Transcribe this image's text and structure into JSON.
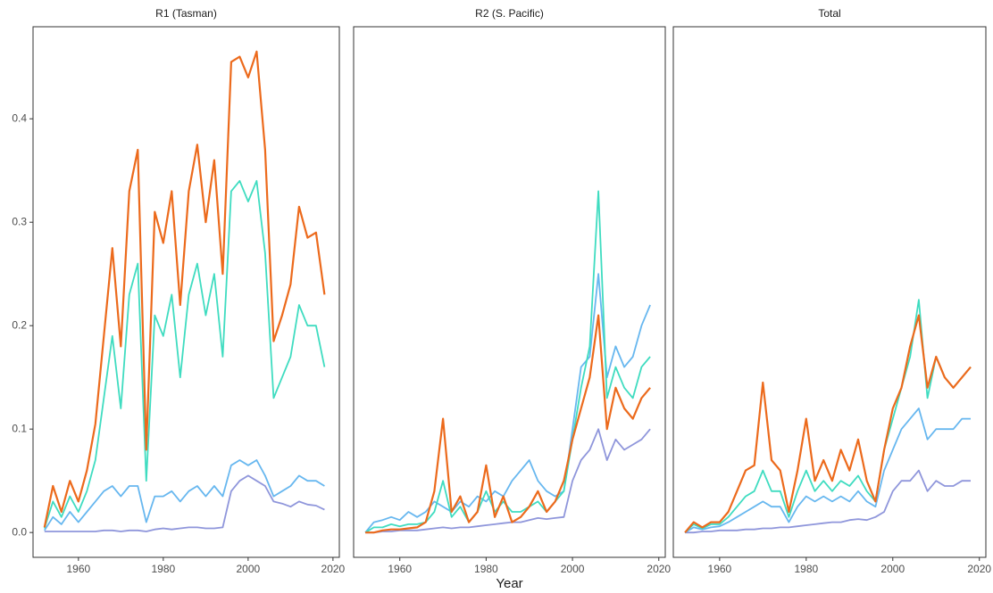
{
  "chart_data": [
    {
      "type": "line",
      "title": "R1 (Tasman)",
      "x": [
        1952,
        1954,
        1956,
        1958,
        1960,
        1962,
        1964,
        1966,
        1968,
        1970,
        1972,
        1974,
        1976,
        1978,
        1980,
        1982,
        1984,
        1986,
        1988,
        1990,
        1992,
        1994,
        1996,
        1998,
        2000,
        2002,
        2004,
        2006,
        2008,
        2010,
        2012,
        2014,
        2016,
        2018
      ],
      "xlim": [
        1949.3,
        2021.5
      ],
      "ylim": [
        -0.024,
        0.489
      ],
      "xticks": [
        1960,
        1980,
        2000,
        2020
      ],
      "yticks": [
        {
          "value": 0,
          "label": "0.0"
        },
        0.1,
        0.2,
        0.3,
        0.4
      ],
      "series": [
        {
          "color": "#8f96db",
          "values": [
            0.001,
            0.001,
            0.001,
            0.001,
            0.001,
            0.001,
            0.001,
            0.002,
            0.002,
            0.001,
            0.002,
            0.002,
            0.001,
            0.003,
            0.004,
            0.003,
            0.004,
            0.005,
            0.005,
            0.004,
            0.004,
            0.005,
            0.04,
            0.05,
            0.055,
            0.05,
            0.045,
            0.03,
            0.028,
            0.025,
            0.03,
            0.027,
            0.026,
            0.022
          ]
        },
        {
          "color": "#67b7ef",
          "values": [
            0.002,
            0.015,
            0.008,
            0.02,
            0.01,
            0.02,
            0.03,
            0.04,
            0.045,
            0.035,
            0.045,
            0.045,
            0.01,
            0.035,
            0.035,
            0.04,
            0.03,
            0.04,
            0.045,
            0.035,
            0.045,
            0.035,
            0.065,
            0.07,
            0.065,
            0.07,
            0.055,
            0.035,
            0.04,
            0.045,
            0.055,
            0.05,
            0.05,
            0.045
          ]
        },
        {
          "color": "#3fdcc0",
          "values": [
            0.004,
            0.03,
            0.015,
            0.035,
            0.02,
            0.04,
            0.07,
            0.13,
            0.19,
            0.12,
            0.23,
            0.26,
            0.05,
            0.21,
            0.19,
            0.23,
            0.15,
            0.23,
            0.26,
            0.21,
            0.25,
            0.17,
            0.33,
            0.34,
            0.32,
            0.34,
            0.27,
            0.13,
            0.15,
            0.17,
            0.22,
            0.2,
            0.2,
            0.16
          ]
        },
        {
          "color": "#ec6a1c",
          "values": [
            0.005,
            0.045,
            0.02,
            0.05,
            0.03,
            0.06,
            0.105,
            0.19,
            0.275,
            0.18,
            0.33,
            0.37,
            0.08,
            0.31,
            0.28,
            0.33,
            0.22,
            0.33,
            0.375,
            0.3,
            0.36,
            0.25,
            0.455,
            0.46,
            0.44,
            0.465,
            0.37,
            0.185,
            0.21,
            0.24,
            0.315,
            0.285,
            0.29,
            0.23
          ]
        }
      ]
    },
    {
      "type": "line",
      "title": "R2 (S. Pacific)",
      "xlabel": "Year",
      "x": [
        1952,
        1954,
        1956,
        1958,
        1960,
        1962,
        1964,
        1966,
        1968,
        1970,
        1972,
        1974,
        1976,
        1978,
        1980,
        1982,
        1984,
        1986,
        1988,
        1990,
        1992,
        1994,
        1996,
        1998,
        2000,
        2002,
        2004,
        2006,
        2008,
        2010,
        2012,
        2014,
        2016,
        2018
      ],
      "xlim": [
        1949.3,
        2021.5
      ],
      "ylim": [
        -0.024,
        0.489
      ],
      "xticks": [
        1960,
        1980,
        2000,
        2020
      ],
      "series": [
        {
          "color": "#8f96db",
          "values": [
            0,
            0,
            0.001,
            0.001,
            0.002,
            0.002,
            0.002,
            0.003,
            0.004,
            0.005,
            0.004,
            0.005,
            0.005,
            0.006,
            0.007,
            0.008,
            0.009,
            0.01,
            0.01,
            0.012,
            0.014,
            0.013,
            0.014,
            0.015,
            0.05,
            0.07,
            0.08,
            0.1,
            0.07,
            0.09,
            0.08,
            0.085,
            0.09,
            0.1
          ]
        },
        {
          "color": "#67b7ef",
          "values": [
            0,
            0.01,
            0.012,
            0.015,
            0.012,
            0.02,
            0.015,
            0.02,
            0.03,
            0.025,
            0.02,
            0.03,
            0.025,
            0.035,
            0.03,
            0.04,
            0.035,
            0.05,
            0.06,
            0.07,
            0.05,
            0.04,
            0.035,
            0.04,
            0.1,
            0.16,
            0.17,
            0.25,
            0.15,
            0.18,
            0.16,
            0.17,
            0.2,
            0.22
          ]
        },
        {
          "color": "#3fdcc0",
          "values": [
            0,
            0.005,
            0.005,
            0.008,
            0.006,
            0.008,
            0.008,
            0.01,
            0.02,
            0.05,
            0.015,
            0.025,
            0.01,
            0.02,
            0.04,
            0.02,
            0.03,
            0.02,
            0.02,
            0.025,
            0.03,
            0.02,
            0.03,
            0.04,
            0.09,
            0.14,
            0.18,
            0.33,
            0.13,
            0.16,
            0.14,
            0.13,
            0.16,
            0.17
          ]
        },
        {
          "color": "#ec6a1c",
          "values": [
            0,
            0,
            0.002,
            0.003,
            0.003,
            0.004,
            0.005,
            0.01,
            0.04,
            0.11,
            0.02,
            0.035,
            0.01,
            0.02,
            0.065,
            0.015,
            0.035,
            0.01,
            0.015,
            0.025,
            0.04,
            0.02,
            0.03,
            0.05,
            0.09,
            0.12,
            0.15,
            0.21,
            0.1,
            0.14,
            0.12,
            0.11,
            0.13,
            0.14
          ]
        }
      ]
    },
    {
      "type": "line",
      "title": "Total",
      "x": [
        1952,
        1954,
        1956,
        1958,
        1960,
        1962,
        1964,
        1966,
        1968,
        1970,
        1972,
        1974,
        1976,
        1978,
        1980,
        1982,
        1984,
        1986,
        1988,
        1990,
        1992,
        1994,
        1996,
        1998,
        2000,
        2002,
        2004,
        2006,
        2008,
        2010,
        2012,
        2014,
        2016,
        2018
      ],
      "xlim": [
        1949.3,
        2021.5
      ],
      "ylim": [
        -0.024,
        0.489
      ],
      "xticks": [
        1960,
        1980,
        2000,
        2020
      ],
      "series": [
        {
          "color": "#8f96db",
          "values": [
            0,
            0,
            0.001,
            0.001,
            0.002,
            0.002,
            0.002,
            0.003,
            0.003,
            0.004,
            0.004,
            0.005,
            0.005,
            0.006,
            0.007,
            0.008,
            0.009,
            0.01,
            0.01,
            0.012,
            0.013,
            0.012,
            0.015,
            0.02,
            0.04,
            0.05,
            0.05,
            0.06,
            0.04,
            0.05,
            0.045,
            0.045,
            0.05,
            0.05
          ]
        },
        {
          "color": "#67b7ef",
          "values": [
            0,
            0.005,
            0.003,
            0.005,
            0.006,
            0.01,
            0.015,
            0.02,
            0.025,
            0.03,
            0.025,
            0.025,
            0.01,
            0.025,
            0.035,
            0.03,
            0.035,
            0.03,
            0.035,
            0.03,
            0.04,
            0.03,
            0.025,
            0.06,
            0.08,
            0.1,
            0.11,
            0.12,
            0.09,
            0.1,
            0.1,
            0.1,
            0.11,
            0.11
          ]
        },
        {
          "color": "#3fdcc0",
          "values": [
            0,
            0.008,
            0.004,
            0.008,
            0.008,
            0.015,
            0.025,
            0.035,
            0.04,
            0.06,
            0.04,
            0.04,
            0.015,
            0.04,
            0.06,
            0.04,
            0.05,
            0.04,
            0.05,
            0.045,
            0.055,
            0.04,
            0.03,
            0.08,
            0.11,
            0.14,
            0.17,
            0.225,
            0.13,
            0.17,
            0.15,
            0.14,
            0.15,
            0.16
          ]
        },
        {
          "color": "#ec6a1c",
          "values": [
            0,
            0.01,
            0.005,
            0.01,
            0.01,
            0.02,
            0.04,
            0.06,
            0.065,
            0.145,
            0.07,
            0.06,
            0.02,
            0.06,
            0.11,
            0.05,
            0.07,
            0.05,
            0.08,
            0.06,
            0.09,
            0.05,
            0.03,
            0.08,
            0.12,
            0.14,
            0.18,
            0.21,
            0.14,
            0.17,
            0.15,
            0.14,
            0.15,
            0.16
          ]
        }
      ]
    }
  ]
}
